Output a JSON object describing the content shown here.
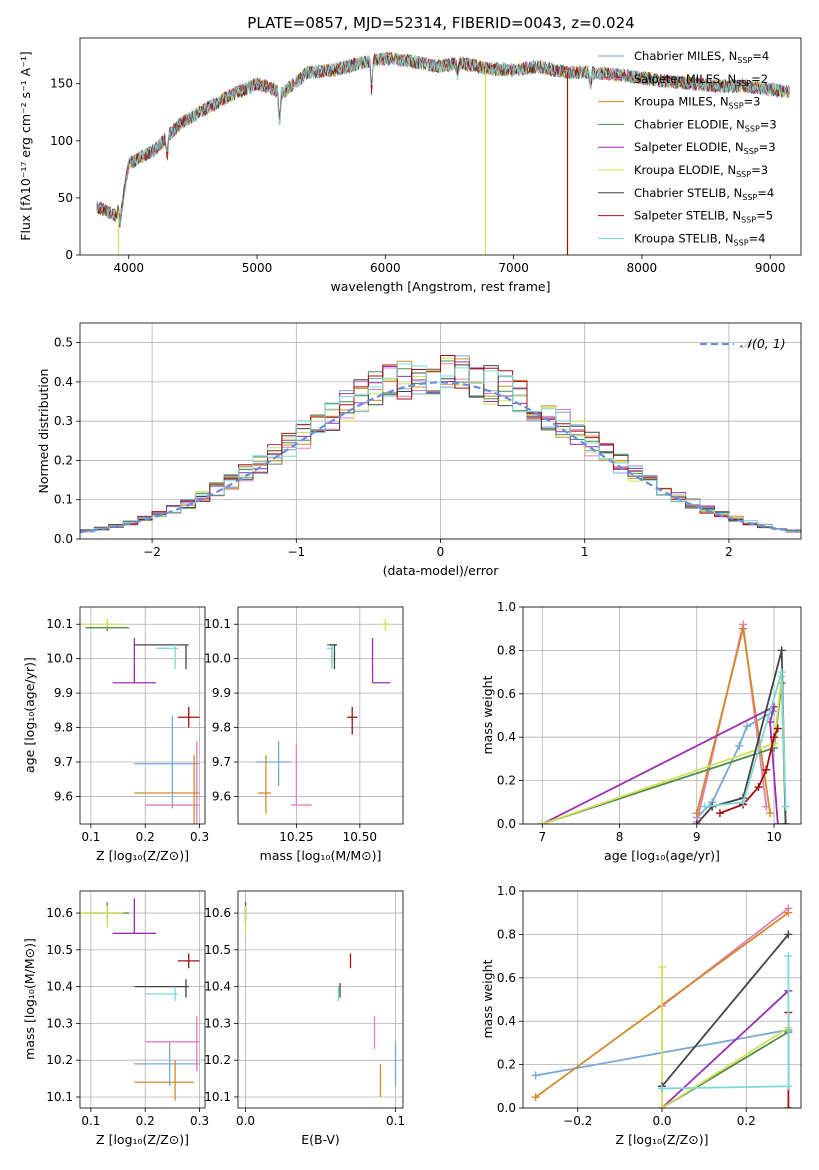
{
  "figure_title": "PLATE=0857, MJD=52314, FIBERID=0043, z=0.024",
  "colors": {
    "chabrier_miles": "#76a9d8",
    "salpeter_miles": "#e07fbf",
    "kroupa_miles": "#d28b2a",
    "chabrier_elodie": "#4f8a4f",
    "salpeter_elodie": "#9a2fb0",
    "kroupa_elodie": "#d4e05a",
    "chabrier_stelib": "#444444",
    "salpeter_stelib": "#a01010",
    "kroupa_stelib": "#7fd8d8",
    "normal_curve": "#6a8fdc"
  },
  "chart_data": [
    {
      "id": "spectrum",
      "type": "line",
      "xlabel": "wavelength [Angstrom, rest frame]",
      "ylabel": "Flux [f_λ 10^-17 erg cm^-2 s^-1 A^-1]",
      "xlim": [
        3620,
        9240
      ],
      "ylim": [
        0,
        190
      ],
      "xticks": [
        4000,
        5000,
        6000,
        7000,
        8000,
        9000
      ],
      "yticks": [
        0,
        50,
        100,
        150
      ],
      "continuum": [
        [
          3750,
          42
        ],
        [
          3900,
          35
        ],
        [
          3950,
          45
        ],
        [
          4000,
          80
        ],
        [
          4200,
          92
        ],
        [
          4400,
          115
        ],
        [
          4600,
          128
        ],
        [
          4800,
          140
        ],
        [
          5000,
          150
        ],
        [
          5200,
          142
        ],
        [
          5400,
          160
        ],
        [
          5600,
          162
        ],
        [
          5800,
          168
        ],
        [
          6000,
          172
        ],
        [
          6200,
          170
        ],
        [
          6400,
          165
        ],
        [
          6600,
          168
        ],
        [
          6800,
          163
        ],
        [
          7000,
          162
        ],
        [
          7200,
          165
        ],
        [
          7400,
          160
        ],
        [
          7600,
          160
        ],
        [
          7800,
          158
        ],
        [
          8000,
          155
        ],
        [
          8200,
          152
        ],
        [
          8400,
          150
        ],
        [
          8600,
          148
        ],
        [
          8800,
          148
        ],
        [
          9000,
          145
        ],
        [
          9150,
          143
        ]
      ],
      "absorption_lines": [
        {
          "x": 3933,
          "depth": 15
        },
        {
          "x": 4300,
          "depth": 18
        },
        {
          "x": 5175,
          "depth": 30
        },
        {
          "x": 5893,
          "depth": 28
        },
        {
          "x": 6563,
          "depth": 10
        },
        {
          "x": 7600,
          "depth": 12
        }
      ],
      "spikes": [
        {
          "x": 3920,
          "to": 0,
          "series": "kroupa_elodie"
        },
        {
          "x": 6780,
          "to": 0,
          "series": "kroupa_elodie"
        },
        {
          "x": 7420,
          "to": 0,
          "series": "salpeter_stelib"
        }
      ],
      "legend": [
        {
          "series": "chabrier_miles",
          "label": "Chabrier MILES, N_SSP=4"
        },
        {
          "series": "salpeter_miles",
          "label": "Salpeter MILES, N_SSP=2"
        },
        {
          "series": "kroupa_miles",
          "label": "Kroupa MILES, N_SSP=3"
        },
        {
          "series": "chabrier_elodie",
          "label": "Chabrier ELODIE, N_SSP=3"
        },
        {
          "series": "salpeter_elodie",
          "label": "Salpeter ELODIE, N_SSP=3"
        },
        {
          "series": "kroupa_elodie",
          "label": "Kroupa ELODIE, N_SSP=3"
        },
        {
          "series": "chabrier_stelib",
          "label": "Chabrier STELIB, N_SSP=4"
        },
        {
          "series": "salpeter_stelib",
          "label": "Salpeter STELIB, N_SSP=5"
        },
        {
          "series": "kroupa_stelib",
          "label": "Kroupa STELIB, N_SSP=4"
        }
      ]
    },
    {
      "id": "residuals",
      "type": "histogram",
      "xlabel": "(data-model)/error",
      "ylabel": "Normed distribution",
      "xlim": [
        -2.5,
        2.5
      ],
      "ylim": [
        0,
        0.55
      ],
      "xticks": [
        -2,
        -1,
        0,
        1,
        2
      ],
      "yticks": [
        0.0,
        0.1,
        0.2,
        0.3,
        0.4,
        0.5
      ],
      "bin_width": 0.1,
      "legend": "N(0,1)",
      "grid": true
    },
    {
      "id": "age_vs_Z",
      "type": "errorbar",
      "xlabel": "Z [log10(Z/Z_sun)]",
      "ylabel": "age [log10(age/yr)]",
      "xlim": [
        0.08,
        0.31
      ],
      "ylim": [
        9.52,
        10.15
      ],
      "xticks": [
        0.1,
        0.2,
        0.3
      ],
      "yticks": [
        9.6,
        9.7,
        9.8,
        9.9,
        10.0,
        10.1
      ],
      "points": [
        {
          "series": "chabrier_miles",
          "x": 0.25,
          "y": 9.695,
          "xlo": 0.18,
          "xhi": 0.3,
          "ylo": 9.565,
          "yhi": 9.835
        },
        {
          "series": "salpeter_miles",
          "x": 0.295,
          "y": 9.575,
          "xlo": 0.2,
          "xhi": 0.3,
          "ylo": 9.52,
          "yhi": 9.76
        },
        {
          "series": "kroupa_miles",
          "x": 0.29,
          "y": 9.61,
          "xlo": 0.18,
          "xhi": 0.3,
          "ylo": 9.52,
          "yhi": 9.72
        },
        {
          "series": "chabrier_elodie",
          "x": 0.13,
          "y": 10.09,
          "xlo": 0.09,
          "xhi": 0.17,
          "ylo": 10.08,
          "yhi": 10.115
        },
        {
          "series": "salpeter_elodie",
          "x": 0.18,
          "y": 9.93,
          "xlo": 0.14,
          "xhi": 0.22,
          "ylo": 9.93,
          "yhi": 10.06
        },
        {
          "series": "kroupa_elodie",
          "x": 0.13,
          "y": 10.1,
          "xlo": 0.08,
          "xhi": 0.16,
          "ylo": 10.09,
          "yhi": 10.115
        },
        {
          "series": "chabrier_stelib",
          "x": 0.275,
          "y": 10.04,
          "xlo": 0.18,
          "xhi": 0.28,
          "ylo": 9.97,
          "yhi": 10.04
        },
        {
          "series": "salpeter_stelib",
          "x": 0.28,
          "y": 9.83,
          "xlo": 0.26,
          "xhi": 0.3,
          "ylo": 9.8,
          "yhi": 9.86
        },
        {
          "series": "kroupa_stelib",
          "x": 0.255,
          "y": 10.03,
          "xlo": 0.22,
          "xhi": 0.26,
          "ylo": 9.97,
          "yhi": 10.04
        }
      ]
    },
    {
      "id": "age_vs_mass",
      "type": "errorbar",
      "xlabel": "mass [log10(M/M_sun)]",
      "ylabel": "",
      "xlim": [
        10.02,
        10.67
      ],
      "ylim": [
        9.52,
        10.15
      ],
      "xticks": [
        10.25,
        10.5
      ],
      "yticks": [
        9.6,
        9.7,
        9.8,
        9.9,
        10.0,
        10.1
      ],
      "points": [
        {
          "series": "chabrier_miles",
          "x": 10.18,
          "y": 9.7,
          "xlo": 10.09,
          "xhi": 10.23,
          "ylo": 9.63,
          "yhi": 9.76
        },
        {
          "series": "salpeter_miles",
          "x": 10.25,
          "y": 9.575,
          "xlo": 10.23,
          "xhi": 10.31,
          "ylo": 9.575,
          "yhi": 9.75
        },
        {
          "series": "kroupa_miles",
          "x": 10.13,
          "y": 9.61,
          "xlo": 10.1,
          "xhi": 10.15,
          "ylo": 9.55,
          "yhi": 9.72
        },
        {
          "series": "chabrier_elodie",
          "x": 10.39,
          "y": 10.04,
          "xlo": 10.37,
          "xhi": 10.41,
          "ylo": 9.98,
          "yhi": 10.04
        },
        {
          "series": "salpeter_elodie",
          "x": 10.55,
          "y": 9.93,
          "xlo": 10.55,
          "xhi": 10.62,
          "ylo": 9.93,
          "yhi": 10.06
        },
        {
          "series": "kroupa_elodie",
          "x": 10.6,
          "y": 10.1,
          "xlo": 10.58,
          "xhi": 10.62,
          "ylo": 10.08,
          "yhi": 10.115
        },
        {
          "series": "chabrier_stelib",
          "x": 10.4,
          "y": 10.04,
          "xlo": 10.38,
          "xhi": 10.41,
          "ylo": 9.97,
          "yhi": 10.04
        },
        {
          "series": "salpeter_stelib",
          "x": 10.47,
          "y": 9.83,
          "xlo": 10.45,
          "xhi": 10.49,
          "ylo": 9.78,
          "yhi": 9.86
        },
        {
          "series": "kroupa_stelib",
          "x": 10.39,
          "y": 10.03,
          "xlo": 10.37,
          "xhi": 10.4,
          "ylo": 9.97,
          "yhi": 10.04
        }
      ]
    },
    {
      "id": "weight_vs_age",
      "type": "line",
      "xlabel": "age [log10(age/yr)]",
      "ylabel": "mass weight",
      "xlim": [
        6.75,
        10.35
      ],
      "ylim": [
        0,
        1
      ],
      "xticks": [
        7,
        8,
        9,
        10
      ],
      "yticks": [
        0.0,
        0.2,
        0.4,
        0.6,
        0.8,
        1.0
      ],
      "series": [
        {
          "series": "chabrier_miles",
          "points": [
            [
              9.0,
              0.03
            ],
            [
              9.2,
              0.1
            ],
            [
              9.55,
              0.36
            ],
            [
              9.65,
              0.45
            ],
            [
              10.0,
              0.52
            ]
          ]
        },
        {
          "series": "salpeter_miles",
          "points": [
            [
              9.0,
              0.01
            ],
            [
              9.6,
              0.92
            ],
            [
              9.9,
              0.08
            ]
          ]
        },
        {
          "series": "kroupa_miles",
          "points": [
            [
              9.0,
              0.05
            ],
            [
              9.6,
              0.9
            ],
            [
              9.95,
              0.05
            ]
          ]
        },
        {
          "series": "chabrier_elodie",
          "points": [
            [
              7.0,
              0.0
            ],
            [
              10.0,
              0.35
            ],
            [
              10.1,
              0.65
            ],
            [
              10.15,
              0.0
            ]
          ]
        },
        {
          "series": "salpeter_elodie",
          "points": [
            [
              7.0,
              0.0
            ],
            [
              10.0,
              0.54
            ],
            [
              9.95,
              0.47
            ],
            [
              10.05,
              0.0
            ]
          ]
        },
        {
          "series": "kroupa_elodie",
          "points": [
            [
              7.0,
              0.0
            ],
            [
              10.0,
              0.37
            ],
            [
              10.1,
              0.68
            ],
            [
              10.15,
              0.0
            ]
          ]
        },
        {
          "series": "chabrier_stelib",
          "points": [
            [
              9.0,
              0.0
            ],
            [
              9.2,
              0.08
            ],
            [
              9.6,
              0.12
            ],
            [
              10.1,
              0.8
            ],
            [
              10.15,
              0.0
            ]
          ]
        },
        {
          "series": "salpeter_stelib",
          "points": [
            [
              9.3,
              0.05
            ],
            [
              9.6,
              0.09
            ],
            [
              9.8,
              0.17
            ],
            [
              9.9,
              0.25
            ],
            [
              10.0,
              0.4
            ],
            [
              10.05,
              0.44
            ]
          ]
        },
        {
          "series": "kroupa_stelib",
          "points": [
            [
              9.1,
              0.08
            ],
            [
              9.6,
              0.1
            ],
            [
              10.1,
              0.7
            ],
            [
              10.15,
              0.08
            ]
          ]
        }
      ]
    },
    {
      "id": "mass_vs_Z",
      "type": "errorbar",
      "xlabel": "Z [log10(Z/Z_sun)]",
      "ylabel": "mass [log10(M/M_sun)]",
      "xlim": [
        0.08,
        0.31
      ],
      "ylim": [
        10.07,
        10.66
      ],
      "xticks": [
        0.1,
        0.2,
        0.3
      ],
      "yticks": [
        10.1,
        10.2,
        10.3,
        10.4,
        10.5,
        10.6
      ],
      "points": [
        {
          "series": "chabrier_miles",
          "x": 0.245,
          "y": 10.19,
          "xlo": 0.18,
          "xhi": 0.3,
          "ylo": 10.13,
          "yhi": 10.25
        },
        {
          "series": "salpeter_miles",
          "x": 0.295,
          "y": 10.25,
          "xlo": 0.2,
          "xhi": 0.3,
          "ylo": 10.17,
          "yhi": 10.32
        },
        {
          "series": "kroupa_miles",
          "x": 0.255,
          "y": 10.14,
          "xlo": 0.18,
          "xhi": 0.29,
          "ylo": 10.09,
          "yhi": 10.2
        },
        {
          "series": "chabrier_elodie",
          "x": 0.13,
          "y": 10.6,
          "xlo": 0.09,
          "xhi": 0.17,
          "ylo": 10.57,
          "yhi": 10.63
        },
        {
          "series": "salpeter_elodie",
          "x": 0.18,
          "y": 10.545,
          "xlo": 0.14,
          "xhi": 0.22,
          "ylo": 10.545,
          "yhi": 10.64
        },
        {
          "series": "kroupa_elodie",
          "x": 0.13,
          "y": 10.6,
          "xlo": 0.08,
          "xhi": 0.16,
          "ylo": 10.56,
          "yhi": 10.62
        },
        {
          "series": "chabrier_stelib",
          "x": 0.275,
          "y": 10.4,
          "xlo": 0.18,
          "xhi": 0.28,
          "ylo": 10.37,
          "yhi": 10.42
        },
        {
          "series": "salpeter_stelib",
          "x": 0.28,
          "y": 10.47,
          "xlo": 0.26,
          "xhi": 0.3,
          "ylo": 10.45,
          "yhi": 10.49
        },
        {
          "series": "kroupa_stelib",
          "x": 0.255,
          "y": 10.38,
          "xlo": 0.2,
          "xhi": 0.26,
          "ylo": 10.36,
          "yhi": 10.4
        }
      ]
    },
    {
      "id": "mass_vs_ebv",
      "type": "errorbar",
      "xlabel": "E(B-V)",
      "ylabel": "",
      "xlim": [
        -0.005,
        0.105
      ],
      "ylim": [
        10.07,
        10.66
      ],
      "xticks": [
        0.0,
        0.1
      ],
      "yticks": [
        10.1,
        10.2,
        10.3,
        10.4,
        10.5,
        10.6
      ],
      "points": [
        {
          "series": "chabrier_miles",
          "x": 0.1,
          "y": 10.19,
          "xlo": 0.1,
          "xhi": 0.1,
          "ylo": 10.13,
          "yhi": 10.25
        },
        {
          "series": "salpeter_miles",
          "x": 0.086,
          "y": 10.28,
          "xlo": 0.086,
          "xhi": 0.086,
          "ylo": 10.23,
          "yhi": 10.32
        },
        {
          "series": "kroupa_miles",
          "x": 0.09,
          "y": 10.14,
          "xlo": 0.09,
          "xhi": 0.09,
          "ylo": 10.1,
          "yhi": 10.19
        },
        {
          "series": "chabrier_elodie",
          "x": 0.0,
          "y": 10.6,
          "xlo": 0.0,
          "xhi": 0.0,
          "ylo": 10.57,
          "yhi": 10.62
        },
        {
          "series": "salpeter_elodie",
          "x": 0.0,
          "y": 10.6,
          "xlo": 0.0,
          "xhi": 0.0,
          "ylo": 10.58,
          "yhi": 10.63
        },
        {
          "series": "kroupa_elodie",
          "x": 0.0,
          "y": 10.58,
          "xlo": 0.0,
          "xhi": 0.0,
          "ylo": 10.55,
          "yhi": 10.62
        },
        {
          "series": "chabrier_stelib",
          "x": 0.063,
          "y": 10.39,
          "xlo": 0.063,
          "xhi": 0.063,
          "ylo": 10.37,
          "yhi": 10.41
        },
        {
          "series": "salpeter_stelib",
          "x": 0.07,
          "y": 10.47,
          "xlo": 0.07,
          "xhi": 0.07,
          "ylo": 10.45,
          "yhi": 10.49
        },
        {
          "series": "kroupa_stelib",
          "x": 0.062,
          "y": 10.38,
          "xlo": 0.062,
          "xhi": 0.062,
          "ylo": 10.36,
          "yhi": 10.4
        }
      ]
    },
    {
      "id": "weight_vs_Z",
      "type": "line",
      "xlabel": "Z [log10(Z/Z_sun)]",
      "ylabel": "mass weight",
      "xlim": [
        -0.33,
        0.33
      ],
      "ylim": [
        0,
        1
      ],
      "xticks": [
        -0.2,
        0.0,
        0.2
      ],
      "yticks": [
        0.0,
        0.2,
        0.4,
        0.6,
        0.8,
        1.0
      ],
      "series": [
        {
          "series": "chabrier_miles",
          "points": [
            [
              -0.3,
              0.15
            ],
            [
              0.3,
              0.36
            ]
          ]
        },
        {
          "series": "salpeter_miles",
          "points": [
            [
              0.0,
              0.47
            ],
            [
              0.3,
              0.92
            ]
          ]
        },
        {
          "series": "kroupa_miles",
          "points": [
            [
              -0.3,
              0.05
            ],
            [
              0.3,
              0.9
            ]
          ]
        },
        {
          "series": "chabrier_elodie",
          "points": [
            [
              0.0,
              0.0
            ],
            [
              0.3,
              0.35
            ]
          ]
        },
        {
          "series": "salpeter_elodie",
          "points": [
            [
              0.0,
              0.0
            ],
            [
              0.3,
              0.54
            ]
          ]
        },
        {
          "series": "kroupa_elodie",
          "points": [
            [
              0.0,
              0.65
            ],
            [
              0.0,
              0.0
            ],
            [
              0.3,
              0.37
            ]
          ]
        },
        {
          "series": "chabrier_stelib",
          "points": [
            [
              0.0,
              0.1
            ],
            [
              0.3,
              0.8
            ]
          ]
        },
        {
          "series": "salpeter_stelib",
          "points": [
            [
              0.3,
              0.44
            ],
            [
              0.3,
              0.0
            ]
          ]
        },
        {
          "series": "kroupa_stelib",
          "points": [
            [
              0.0,
              0.09
            ],
            [
              0.3,
              0.1
            ],
            [
              0.3,
              0.7
            ]
          ]
        }
      ]
    }
  ]
}
